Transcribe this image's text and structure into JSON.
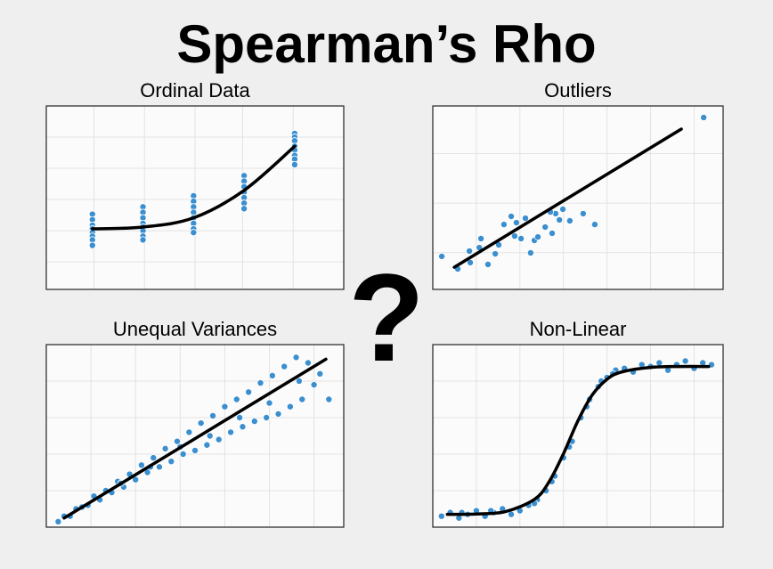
{
  "title": "Spearman’s Rho",
  "symbol": "?",
  "chart_data": [
    {
      "type": "scatter",
      "title": "Ordinal Data",
      "color": "#3b8fcf",
      "line_color": "#000000",
      "grid": true,
      "xlim": [
        0,
        100
      ],
      "ylim": [
        0,
        100
      ],
      "xticks": [
        16,
        33,
        50,
        66,
        83
      ],
      "yticks": [
        15,
        32,
        49,
        66,
        83
      ],
      "x": [
        15.5,
        15.5,
        15.5,
        15.5,
        15.5,
        15.5,
        15.5,
        15.5,
        32.5,
        32.5,
        32.5,
        32.5,
        32.5,
        32.5,
        32.5,
        32.5,
        49.5,
        49.5,
        49.5,
        49.5,
        49.5,
        49.5,
        49.5,
        49.5,
        66.5,
        66.5,
        66.5,
        66.5,
        66.5,
        66.5,
        66.5,
        83.5,
        83.5,
        83.5,
        83.5,
        83.5,
        83.5,
        83.5,
        83.5
      ],
      "values": [
        41,
        38,
        35,
        33,
        31,
        29,
        27,
        24,
        45,
        42,
        39,
        36,
        34,
        32,
        29,
        27,
        51,
        48,
        45,
        42,
        39,
        36,
        33,
        31,
        62,
        59,
        56,
        53,
        50,
        47,
        44,
        85,
        83,
        81,
        78,
        76,
        73,
        71,
        68
      ],
      "fit": {
        "x": [
          15.5,
          32.5,
          49.5,
          66.5,
          83.5
        ],
        "values": [
          33,
          34,
          39,
          54,
          78
        ]
      }
    },
    {
      "type": "scatter",
      "title": "Outliers",
      "color": "#3b8fcf",
      "line_color": "#000000",
      "grid": true,
      "xlim": [
        0,
        100
      ],
      "ylim": [
        0,
        100
      ],
      "xticks": [
        15,
        30,
        45,
        60,
        75,
        90
      ],
      "yticks": [
        20,
        47,
        74
      ],
      "x": [
        3.1,
        8.6,
        12.9,
        16.6,
        21.5,
        24.5,
        28.2,
        31.9,
        35,
        38.7,
        42.3,
        44.8,
        51.8,
        55.8,
        93.3,
        12.6,
        19,
        28.8,
        33.7,
        36.2,
        41.1,
        43.6,
        47.2,
        27,
        22.7,
        16,
        30.4,
        40.5
      ],
      "values": [
        18,
        11.2,
        14.6,
        27.7,
        19.4,
        35.4,
        29.1,
        38.8,
        26.7,
        34,
        41.3,
        43.7,
        41.3,
        35.4,
        93.7,
        20.9,
        13.6,
        36.4,
        19.9,
        28.6,
        30.6,
        37.9,
        37.4,
        39.8,
        24.3,
        22.8,
        27.7,
        42.2
      ],
      "fit": {
        "x": [
          7.4,
          85.6
        ],
        "values": [
          12.1,
          87.4
        ]
      }
    },
    {
      "type": "scatter",
      "title": "Unequal Variances",
      "color": "#3b8fcf",
      "line_color": "#000000",
      "grid": true,
      "xlim": [
        0,
        100
      ],
      "ylim": [
        0,
        100
      ],
      "xticks": [
        15,
        30,
        45,
        60,
        75,
        90
      ],
      "yticks": [
        20,
        40,
        60,
        80
      ],
      "x": [
        4,
        6,
        8,
        10,
        12,
        14,
        16,
        18,
        20,
        22,
        24,
        26,
        28,
        30,
        32,
        34,
        36,
        38,
        40,
        42,
        44,
        46,
        48,
        50,
        52,
        54,
        56,
        58,
        60,
        62,
        64,
        66,
        68,
        70,
        72,
        74,
        76,
        78,
        80,
        82,
        84,
        86,
        88,
        90,
        92,
        95,
        65,
        75,
        85,
        55,
        45,
        35,
        25
      ],
      "values": [
        3,
        6,
        6,
        10,
        11,
        12,
        17,
        15,
        20,
        19,
        25,
        22,
        29,
        26,
        34,
        30,
        38,
        33,
        43,
        36,
        47,
        40,
        52,
        42,
        57,
        45,
        61,
        48,
        66,
        52,
        70,
        55,
        74,
        58,
        79,
        60,
        83,
        62,
        88,
        66,
        93,
        70,
        90,
        78,
        84,
        70,
        60,
        68,
        80,
        50,
        44,
        33,
        24
      ],
      "fit": {
        "x": [
          6,
          94
        ],
        "values": [
          5,
          92
        ]
      }
    },
    {
      "type": "scatter",
      "title": "Non-Linear",
      "color": "#3b8fcf",
      "line_color": "#000000",
      "grid": true,
      "xlim": [
        0,
        100
      ],
      "ylim": [
        0,
        100
      ],
      "xticks": [
        15,
        30,
        45,
        60,
        75,
        90
      ],
      "yticks": [
        20,
        40,
        60,
        80
      ],
      "x": [
        3,
        6,
        9,
        12,
        15,
        18,
        21,
        24,
        27,
        30,
        33,
        36,
        39,
        42,
        45,
        48,
        51,
        54,
        57,
        60,
        63,
        66,
        69,
        72,
        75,
        78,
        81,
        84,
        87,
        90,
        93,
        96,
        35,
        41,
        47,
        53,
        58,
        62,
        20,
        10
      ],
      "values": [
        6,
        8,
        5,
        7,
        9,
        6,
        8,
        10,
        7,
        9,
        12,
        15,
        20,
        28,
        38,
        47,
        60,
        70,
        77,
        82,
        86,
        87,
        85,
        89,
        88,
        90,
        86,
        89,
        91,
        87,
        90,
        89,
        13,
        25,
        44,
        66,
        80,
        84,
        9,
        8
      ],
      "fit": {
        "x": [
          5,
          15,
          25,
          35,
          40,
          45,
          50,
          55,
          60,
          65,
          75,
          85,
          95
        ],
        "values": [
          7,
          7.2,
          8.5,
          15.2,
          24.7,
          40.2,
          58.3,
          72.6,
          81,
          85,
          87.5,
          88,
          88
        ]
      }
    }
  ]
}
